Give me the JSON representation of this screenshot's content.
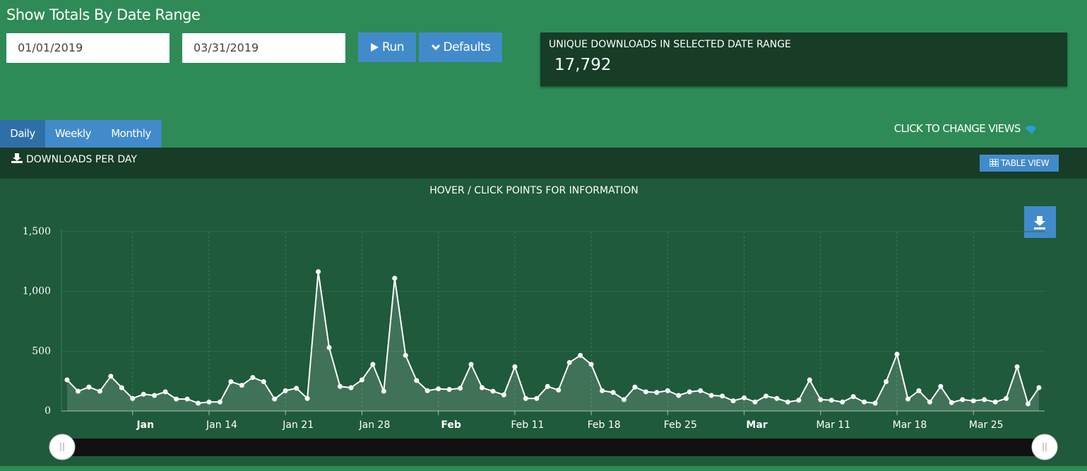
{
  "header": {
    "title": "Show Totals By Date Range"
  },
  "form": {
    "start_date": "01/01/2019",
    "end_date": "03/31/2019",
    "run_button": "Run",
    "defaults_button": "Defaults"
  },
  "summary": {
    "label": "UNIQUE DOWNLOADS IN SELECTED DATE RANGE",
    "value": "17,792"
  },
  "tabs": [
    "Daily",
    "Weekly",
    "Monthly"
  ],
  "active_tab": "Daily",
  "views_hint": "CLICK TO CHANGE VIEWS",
  "panel": {
    "title": "DOWNLOADS PER DAY",
    "table_view_button": "TABLE VIEW"
  },
  "chart_data": {
    "type": "line",
    "subtitle": "HOVER / CLICK POINTS FOR INFORMATION",
    "color": "#ffffff",
    "grid": true,
    "x": [
      "2019-01-01",
      "2019-01-02",
      "2019-01-03",
      "2019-01-04",
      "2019-01-05",
      "2019-01-06",
      "2019-01-07",
      "2019-01-08",
      "2019-01-09",
      "2019-01-10",
      "2019-01-11",
      "2019-01-12",
      "2019-01-13",
      "2019-01-14",
      "2019-01-15",
      "2019-01-16",
      "2019-01-17",
      "2019-01-18",
      "2019-01-19",
      "2019-01-20",
      "2019-01-21",
      "2019-01-22",
      "2019-01-23",
      "2019-01-24",
      "2019-01-25",
      "2019-01-26",
      "2019-01-27",
      "2019-01-28",
      "2019-01-29",
      "2019-01-30",
      "2019-01-31",
      "2019-02-01",
      "2019-02-02",
      "2019-02-03",
      "2019-02-04",
      "2019-02-05",
      "2019-02-06",
      "2019-02-07",
      "2019-02-08",
      "2019-02-09",
      "2019-02-10",
      "2019-02-11",
      "2019-02-12",
      "2019-02-13",
      "2019-02-14",
      "2019-02-15",
      "2019-02-16",
      "2019-02-17",
      "2019-02-18",
      "2019-02-19",
      "2019-02-20",
      "2019-02-21",
      "2019-02-22",
      "2019-02-23",
      "2019-02-24",
      "2019-02-25",
      "2019-02-26",
      "2019-02-27",
      "2019-02-28",
      "2019-03-01",
      "2019-03-02",
      "2019-03-03",
      "2019-03-04",
      "2019-03-05",
      "2019-03-06",
      "2019-03-07",
      "2019-03-08",
      "2019-03-09",
      "2019-03-10",
      "2019-03-11",
      "2019-03-12",
      "2019-03-13",
      "2019-03-14",
      "2019-03-15",
      "2019-03-16",
      "2019-03-17",
      "2019-03-18",
      "2019-03-19",
      "2019-03-20",
      "2019-03-21",
      "2019-03-22",
      "2019-03-23",
      "2019-03-24",
      "2019-03-25",
      "2019-03-26",
      "2019-03-27",
      "2019-03-28",
      "2019-03-29",
      "2019-03-30",
      "2019-03-31"
    ],
    "values": [
      260,
      165,
      200,
      165,
      290,
      195,
      105,
      140,
      130,
      160,
      100,
      100,
      65,
      75,
      75,
      245,
      215,
      280,
      245,
      100,
      170,
      190,
      105,
      1165,
      530,
      205,
      195,
      260,
      390,
      165,
      1110,
      465,
      255,
      170,
      185,
      180,
      190,
      390,
      195,
      165,
      135,
      370,
      105,
      105,
      205,
      175,
      405,
      465,
      390,
      170,
      155,
      95,
      200,
      160,
      155,
      170,
      130,
      160,
      170,
      130,
      125,
      85,
      110,
      75,
      125,
      105,
      75,
      90,
      260,
      95,
      90,
      75,
      120,
      75,
      65,
      245,
      475,
      100,
      170,
      75,
      205,
      70,
      95,
      85,
      95,
      75,
      105,
      370,
      60,
      195
    ],
    "xlim": [
      "2019-01-01",
      "2019-03-31"
    ],
    "xticks": [
      {
        "value": "2019-01-07",
        "label": "Jan"
      },
      {
        "value": "2019-01-14",
        "label": "Jan 14"
      },
      {
        "value": "2019-01-21",
        "label": "Jan 21"
      },
      {
        "value": "2019-01-28",
        "label": "Jan 28"
      },
      {
        "value": "2019-02-04",
        "label": "Feb"
      },
      {
        "value": "2019-02-11",
        "label": "Feb 11"
      },
      {
        "value": "2019-02-18",
        "label": "Feb 18"
      },
      {
        "value": "2019-02-25",
        "label": "Feb 25"
      },
      {
        "value": "2019-03-04",
        "label": "Mar"
      },
      {
        "value": "2019-03-11",
        "label": "Mar 11"
      },
      {
        "value": "2019-03-18",
        "label": "Mar 18"
      },
      {
        "value": "2019-03-25",
        "label": "Mar 25"
      }
    ],
    "ylim": [
      0,
      1500
    ],
    "yticks": [
      0,
      500,
      {
        "value": 1000,
        "label": "1,000"
      },
      {
        "value": 1500,
        "label": "1,500"
      }
    ]
  }
}
